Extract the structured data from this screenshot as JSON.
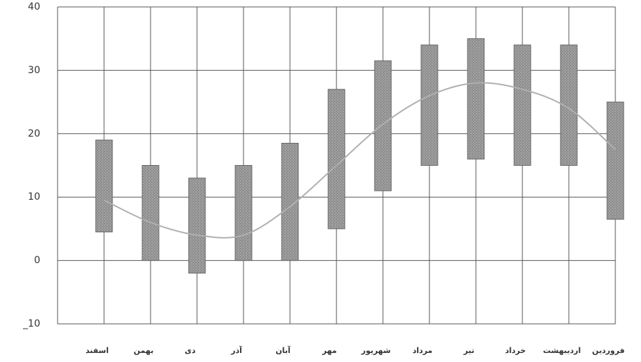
{
  "chart_data": {
    "type": "range-bar",
    "categories": [
      "اسفند",
      "بهمن",
      "دی",
      "آذر",
      "آبان",
      "مهر",
      "شهریور",
      "مرداد",
      "تیر",
      "خرداد",
      "اردیبهشت",
      "فروردین"
    ],
    "low": [
      4.5,
      0,
      -2,
      0,
      0,
      5,
      11,
      15,
      16,
      15,
      15,
      6.5
    ],
    "high": [
      19,
      15,
      13,
      15,
      18.5,
      27,
      31.5,
      34,
      35,
      34,
      34,
      25
    ],
    "curve": [
      9.5,
      6,
      4,
      4,
      8.5,
      15,
      21.5,
      26,
      28,
      27,
      24,
      17.5
    ],
    "bar_color": "#8c8c8c",
    "curve_color": "#b0b0b0",
    "ylim": [
      -10,
      40
    ],
    "yticks": [
      {
        "value": -10,
        "label": "_10"
      },
      0,
      10,
      20,
      30,
      40
    ],
    "grid": true
  }
}
